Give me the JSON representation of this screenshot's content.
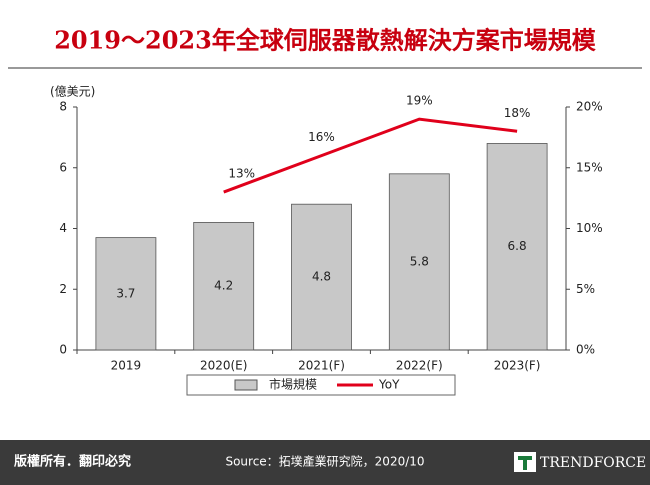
{
  "chart_data": {
    "type": "bar",
    "title": "2019～2023年全球伺服器散熱解決方案市場規模",
    "y_label": "(億美元)",
    "categories": [
      "2019",
      "2020(E)",
      "2021(F)",
      "2022(F)",
      "2023(F)"
    ],
    "series": [
      {
        "name": "市場規模",
        "type": "bar",
        "color": "#c8c8c8",
        "values": [
          3.7,
          4.2,
          4.8,
          5.8,
          6.8
        ]
      },
      {
        "name": "YoY",
        "type": "line",
        "axis": "y2",
        "color": "#e0001b",
        "values": [
          null,
          13,
          16,
          19,
          18
        ],
        "value_labels": [
          null,
          "13%",
          "16%",
          "19%",
          "18%"
        ]
      }
    ],
    "ylim": [
      0,
      8
    ],
    "yticks": [
      0,
      2,
      4,
      6,
      8
    ],
    "y2lim": [
      0,
      20
    ],
    "y2ticks": [
      {
        "value": 0,
        "label": "0%"
      },
      {
        "value": 5,
        "label": "5%"
      },
      {
        "value": 10,
        "label": "10%"
      },
      {
        "value": 15,
        "label": "15%"
      },
      {
        "value": 20,
        "label": "20%"
      }
    ],
    "grid": false,
    "legend": "bottom"
  },
  "footer": {
    "rights": "版權所有．翻印必究",
    "source": "Source：拓墣產業研究院，2020/10",
    "logo": "TRENDFORCE"
  }
}
